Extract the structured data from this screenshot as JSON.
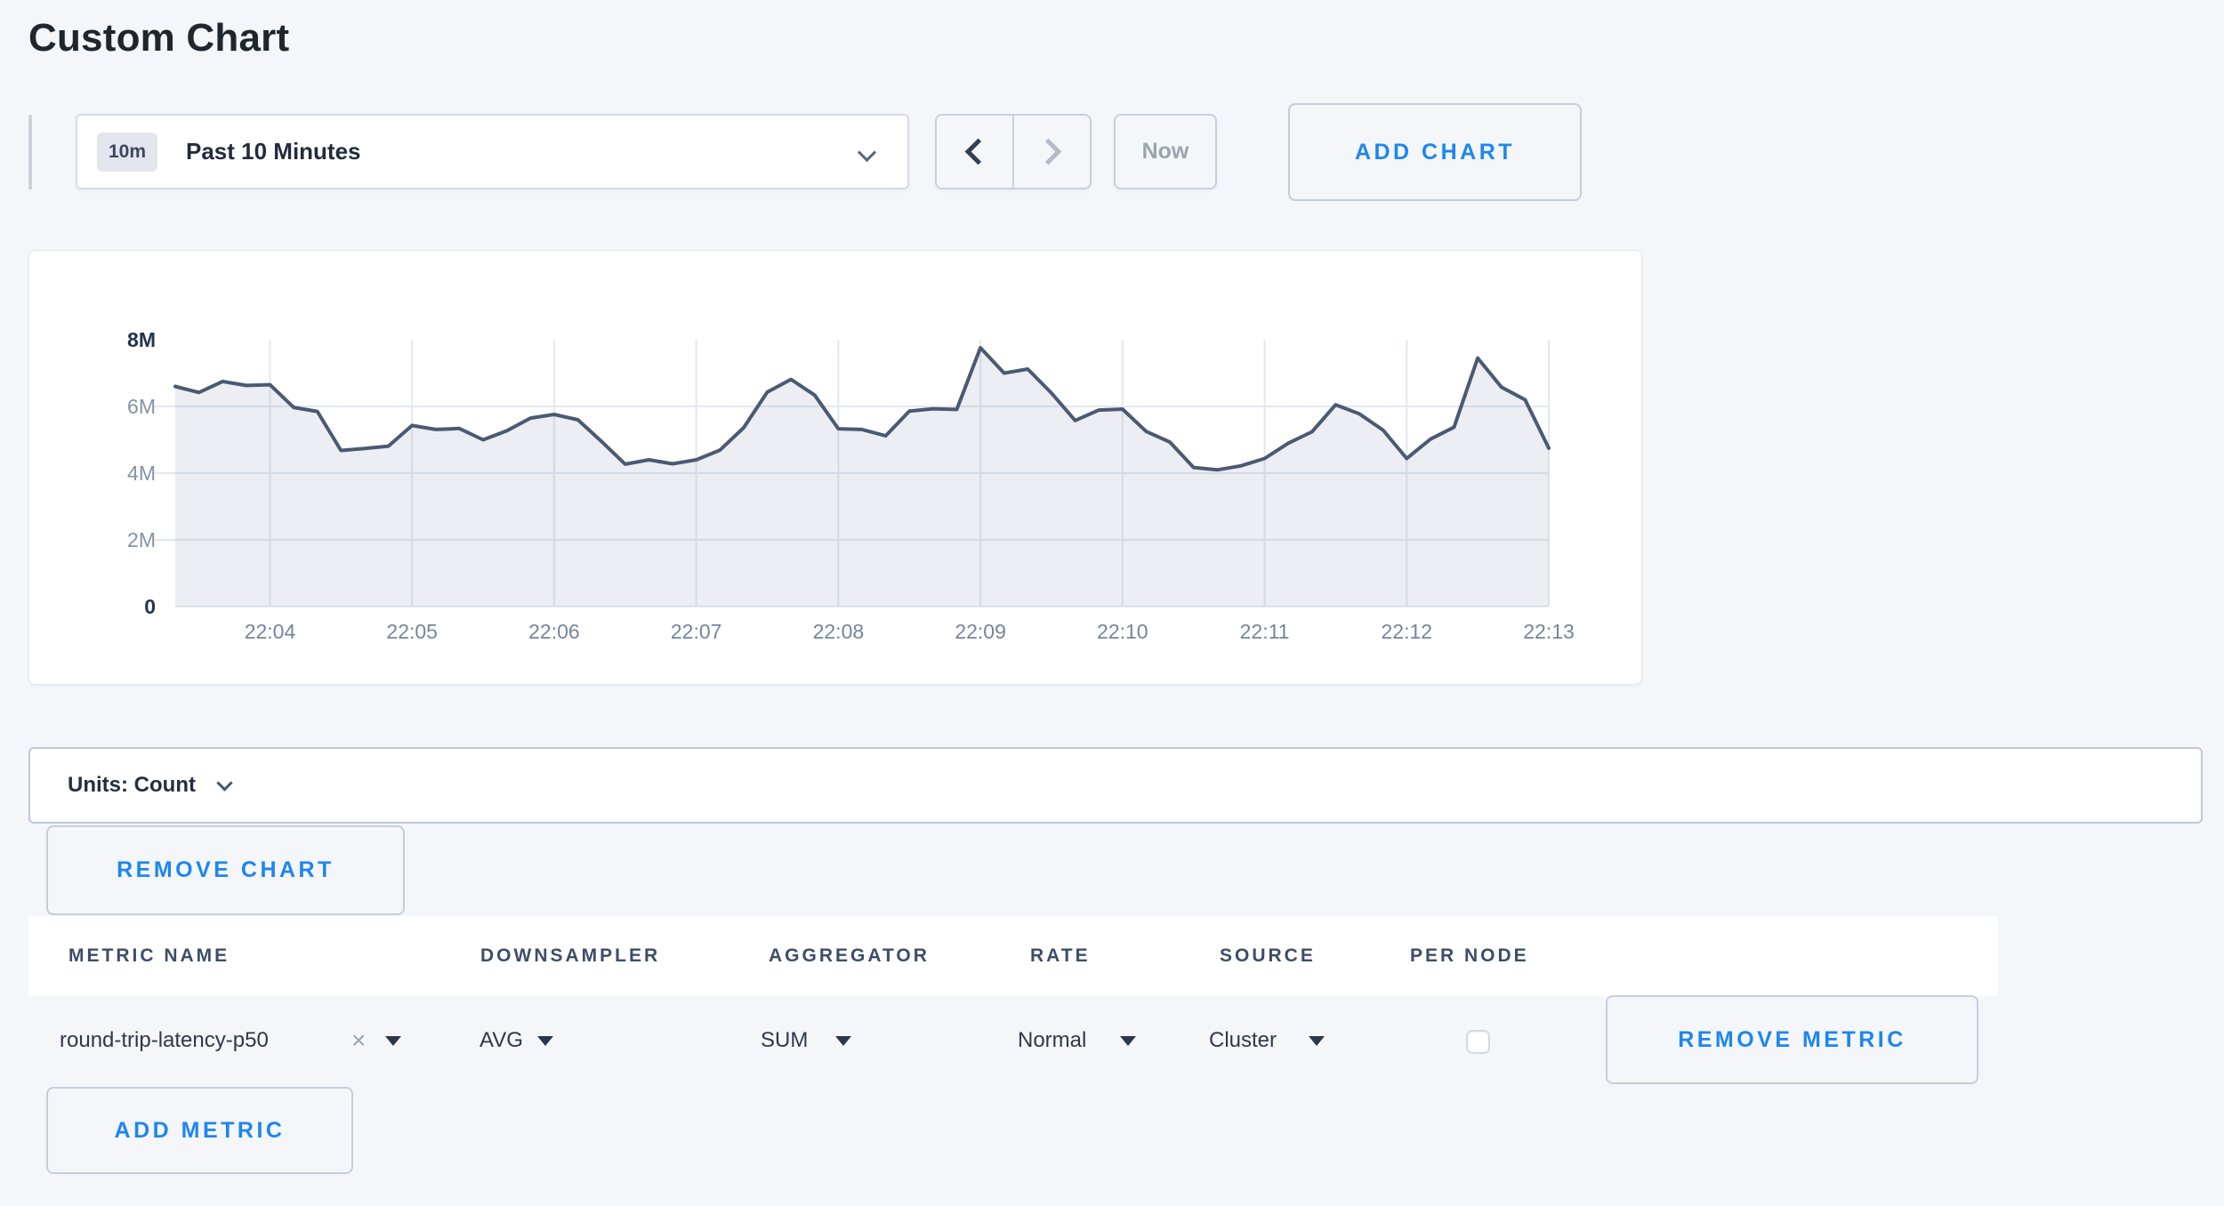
{
  "page": {
    "title": "Custom Chart"
  },
  "toolbar": {
    "time_window_badge": "10m",
    "time_window_label": "Past 10 Minutes",
    "now_label": "Now",
    "add_chart_label": "ADD CHART"
  },
  "chart_data": {
    "type": "area",
    "title": "",
    "xlabel": "",
    "ylabel": "",
    "unit": "Count",
    "x_start": "22:03:20",
    "x_interval_seconds": 10,
    "values_millions": [
      6.6,
      6.42,
      6.75,
      6.63,
      6.65,
      5.97,
      5.85,
      4.68,
      4.74,
      4.81,
      5.43,
      5.31,
      5.34,
      5.0,
      5.27,
      5.65,
      5.76,
      5.6,
      4.95,
      4.27,
      4.4,
      4.28,
      4.4,
      4.69,
      5.36,
      6.43,
      6.81,
      6.34,
      5.33,
      5.31,
      5.12,
      5.86,
      5.93,
      5.91,
      7.76,
      7.0,
      7.12,
      6.4,
      5.58,
      5.89,
      5.92,
      5.25,
      4.93,
      4.17,
      4.1,
      4.22,
      4.44,
      4.9,
      5.24,
      6.05,
      5.78,
      5.29,
      4.44,
      5.02,
      5.38,
      7.45,
      6.58,
      6.2,
      4.75
    ],
    "series_name": "round-trip-latency-p50",
    "ylim_millions": [
      0,
      8
    ],
    "y_tick_labels": [
      "0",
      "2M",
      "4M",
      "6M",
      "8M"
    ],
    "y_tick_values_millions": [
      0,
      2,
      4,
      6,
      8
    ],
    "x_tick_labels": [
      "22:04",
      "22:05",
      "22:06",
      "22:07",
      "22:08",
      "22:09",
      "22:10",
      "22:11",
      "22:12",
      "22:13"
    ],
    "x_tick_indexes": [
      4,
      10,
      16,
      22,
      28,
      34,
      40,
      46,
      52,
      58
    ],
    "grid": true,
    "legend": "none",
    "line_color": "#4b5972",
    "fill_color": "rgba(107,125,163,0.13)",
    "grid_color": "#e3e8f0"
  },
  "units_bar": {
    "label": "Units: Count"
  },
  "chart_actions": {
    "remove_chart_label": "REMOVE CHART",
    "add_metric_label": "ADD METRIC"
  },
  "metrics_table": {
    "columns": [
      "METRIC NAME",
      "DOWNSAMPLER",
      "AGGREGATOR",
      "RATE",
      "SOURCE",
      "PER NODE"
    ],
    "rows": [
      {
        "metric_name": "round-trip-latency-p50",
        "remove_tag_label": "×",
        "downsampler": "AVG",
        "aggregator": "SUM",
        "rate": "Normal",
        "source": "Cluster",
        "per_node_checked": false,
        "remove_label": "REMOVE METRIC"
      }
    ]
  }
}
